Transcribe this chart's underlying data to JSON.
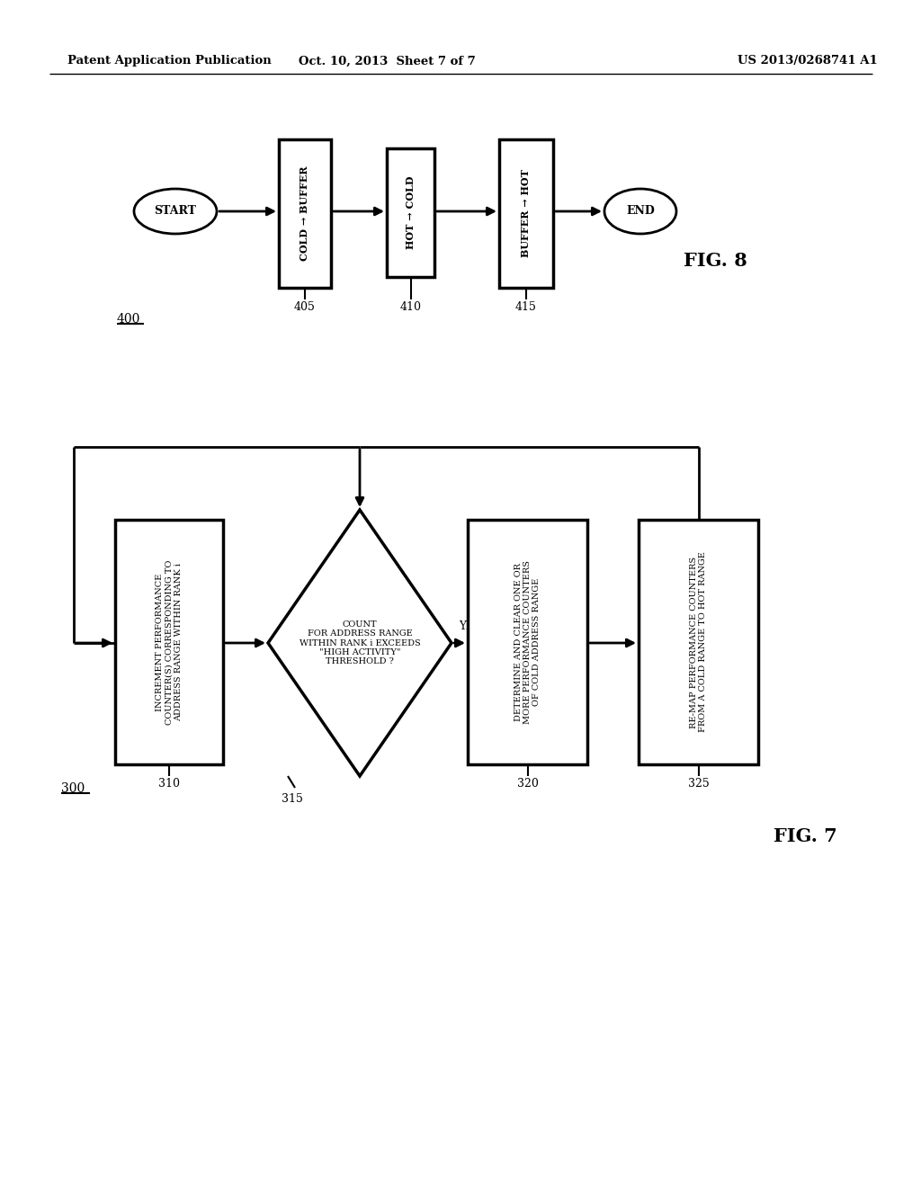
{
  "bg_color": "#ffffff",
  "header_left": "Patent Application Publication",
  "header_mid": "Oct. 10, 2013  Sheet 7 of 7",
  "header_right": "US 2013/0268741 A1",
  "fig8_label": "FIG. 8",
  "fig8_ref": "400",
  "fig7_label": "FIG. 7",
  "fig7_ref": "300"
}
